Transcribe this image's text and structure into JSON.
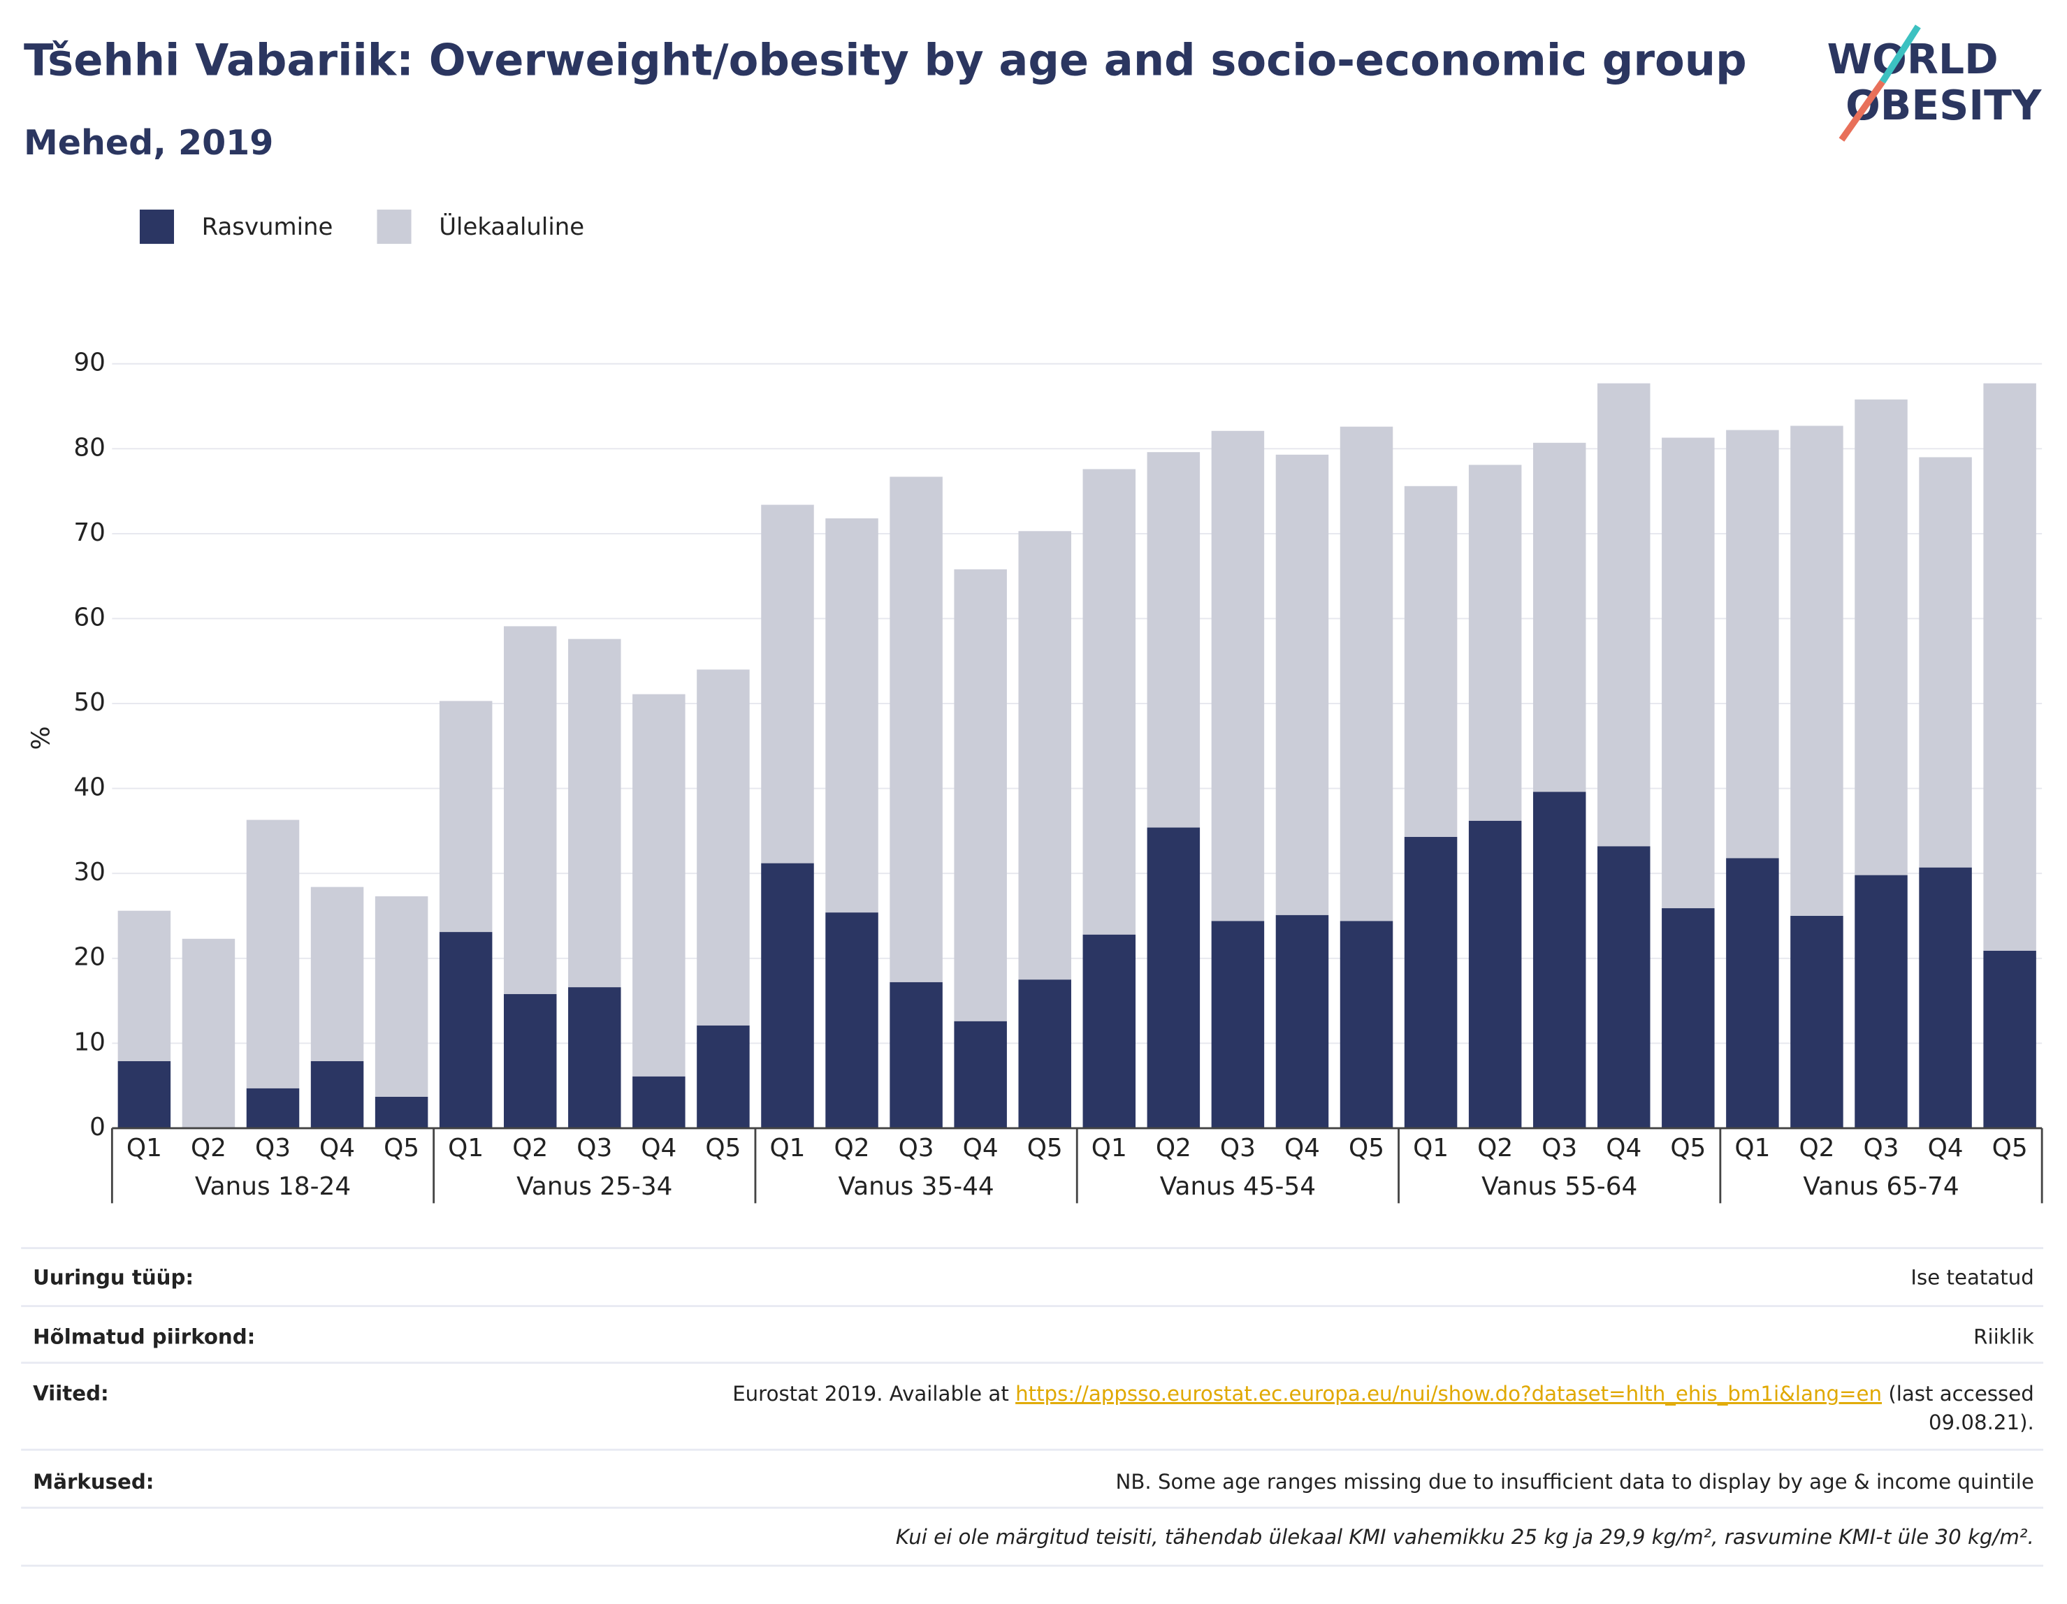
{
  "chart_data": {
    "type": "stacked_bar",
    "title": "Tšehhi Vabariik: Overweight/obesity by age and socio-economic group",
    "subtitle": "Mehed, 2019",
    "logo": [
      "WORLD",
      "OBESITY"
    ],
    "y_label": "%",
    "groups": [
      "Vanus 18-24",
      "Vanus 25-34",
      "Vanus 35-44",
      "Vanus 45-54",
      "Vanus 55-64",
      "Vanus 65-74"
    ],
    "categories": [
      "Q1",
      "Q2",
      "Q3",
      "Q4",
      "Q5",
      "Q1",
      "Q2",
      "Q3",
      "Q4",
      "Q5",
      "Q1",
      "Q2",
      "Q3",
      "Q4",
      "Q5",
      "Q1",
      "Q2",
      "Q3",
      "Q4",
      "Q5",
      "Q1",
      "Q2",
      "Q3",
      "Q4",
      "Q5",
      "Q1",
      "Q2",
      "Q3",
      "Q4",
      "Q5"
    ],
    "series": [
      {
        "name": "Rasvumine",
        "color": "#2b3663",
        "values": [
          7.9,
          0,
          4.7,
          7.9,
          3.7,
          23.1,
          15.8,
          16.6,
          6.1,
          12.1,
          31.2,
          25.4,
          17.2,
          12.6,
          17.5,
          22.8,
          35.4,
          24.4,
          25.1,
          24.4,
          34.3,
          36.2,
          39.6,
          33.2,
          25.9,
          31.8,
          25.0,
          29.8,
          30.7,
          20.9
        ]
      },
      {
        "name": "Ülekaaluline",
        "color": "#cbcdd8",
        "values": [
          17.7,
          22.3,
          31.6,
          20.5,
          23.6,
          27.2,
          43.3,
          41.0,
          45.0,
          41.9,
          42.2,
          46.4,
          59.5,
          53.2,
          52.8,
          54.8,
          44.2,
          57.7,
          54.2,
          58.2,
          41.3,
          41.9,
          41.1,
          54.5,
          55.4,
          50.4,
          57.7,
          56.0,
          48.3,
          66.8
        ]
      }
    ],
    "ylim": [
      0,
      90
    ],
    "yticks": [
      0,
      10,
      20,
      30,
      40,
      50,
      60,
      70,
      80,
      90
    ],
    "grid": true,
    "legend": "top-left"
  },
  "table": {
    "rows": [
      {
        "label": "Uuringu tüüp:",
        "value": [
          "Ise teatatud"
        ]
      },
      {
        "label": "Hõlmatud piirkond:",
        "value": [
          "Riiklik"
        ]
      },
      {
        "label": "Viited:",
        "value": [
          "Eurostat 2019. Available at ",
          "https://appsso.eurostat.ec.europa.eu/nui/show.do?dataset=hlth_ehis_bm1i&lang=en",
          " (last accessed",
          "09.08.21)."
        ]
      },
      {
        "label": "Märkused:",
        "value": [
          "NB. Some age ranges missing due to insufficient data to display by age & income quintile"
        ]
      }
    ],
    "note": "Kui ei ole märgitud teisiti, tähendab ülekaal KMI vahemikku 25 kg ja 29,9 kg/m², rasvumine KMI-t üle 30 kg/m²."
  }
}
